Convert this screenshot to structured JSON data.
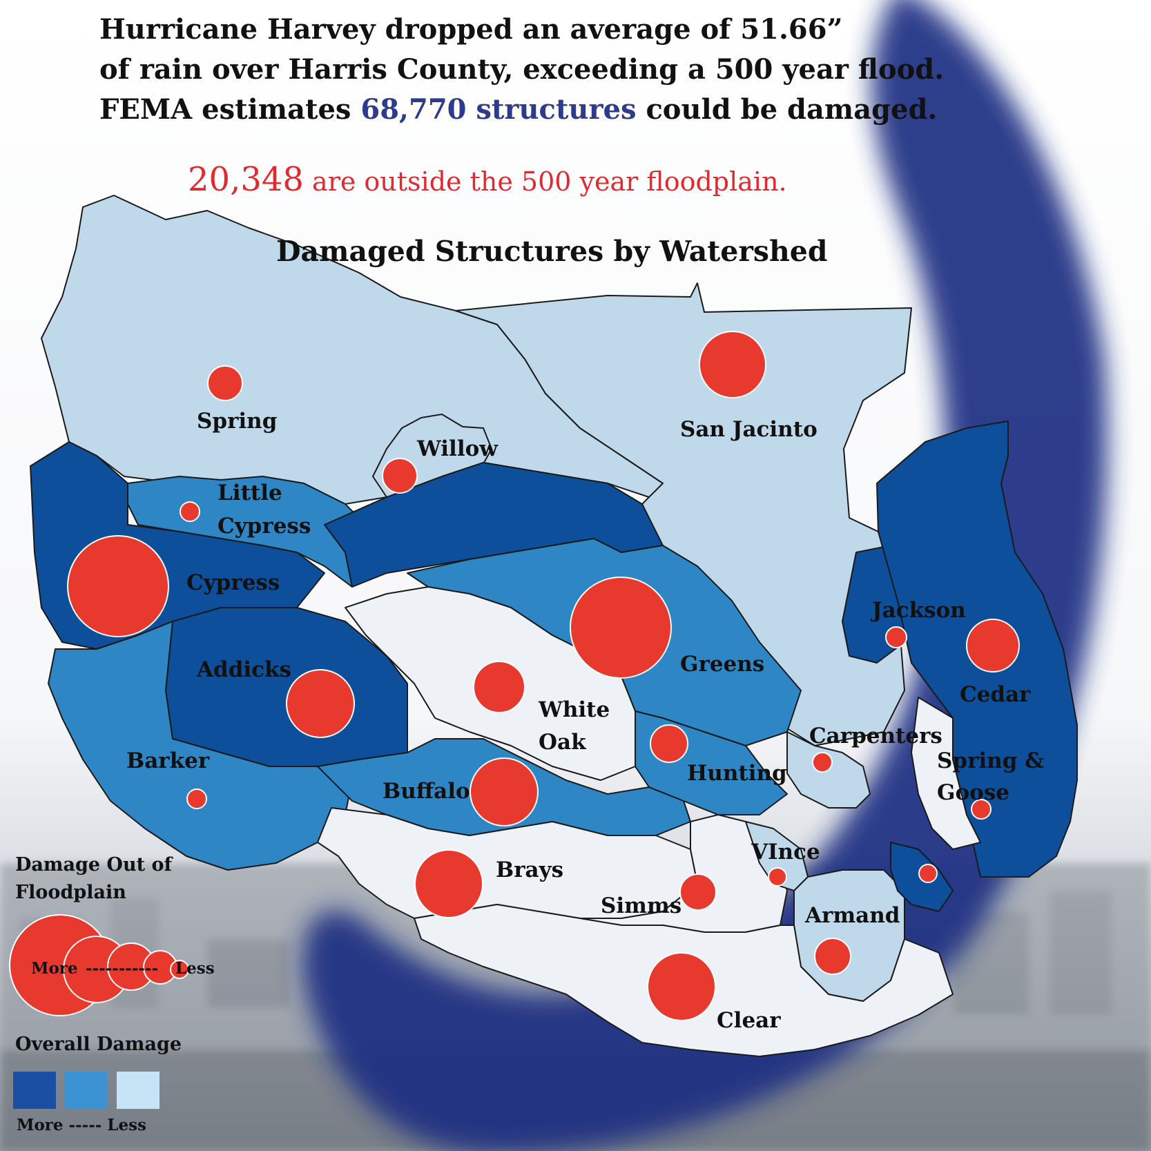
{
  "headline": {
    "line1": "Hurricane Harvey dropped an average of 51.66”",
    "line2": "of rain over Harris County, exceeding a 500 year flood.",
    "line3_pre": "FEMA estimates ",
    "line3_highlight": "68,770 structures",
    "line3_post": " could be damaged."
  },
  "subhead": {
    "number": "20,348",
    "text": " are outside the 500 year floodplain."
  },
  "map": {
    "title": "Damaged Structures by Watershed",
    "watersheds": [
      {
        "label": "Spring",
        "damage_level": "less"
      },
      {
        "label": "San Jacinto",
        "damage_level": "less"
      },
      {
        "label": "Willow",
        "damage_level": "less"
      },
      {
        "label": "Little Cypress",
        "damage_level": "medium"
      },
      {
        "label": "Cypress",
        "damage_level": "more"
      },
      {
        "label": "Addicks",
        "damage_level": "more"
      },
      {
        "label": "Greens",
        "damage_level": "medium"
      },
      {
        "label": "White Oak",
        "damage_level": "least"
      },
      {
        "label": "Jackson",
        "damage_level": "more"
      },
      {
        "label": "Cedar",
        "damage_level": "more"
      },
      {
        "label": "Barker",
        "damage_level": "medium"
      },
      {
        "label": "Buffalo",
        "damage_level": "medium"
      },
      {
        "label": "Carpenters",
        "damage_level": "less"
      },
      {
        "label": "Hunting",
        "damage_level": "medium"
      },
      {
        "label": "Spring & Goose",
        "damage_level": "least"
      },
      {
        "label": "Brays",
        "damage_level": "least"
      },
      {
        "label": "Simms",
        "damage_level": "least"
      },
      {
        "label": "VInce",
        "damage_level": "less"
      },
      {
        "label": "Armand",
        "damage_level": "less"
      },
      {
        "label": "Clear",
        "damage_level": "least"
      }
    ]
  },
  "legend": {
    "bubble_title_line1": "Damage Out of",
    "bubble_title_line2": "Floodplain",
    "bubble_more": "More",
    "bubble_less": "Less",
    "color_title": "Overall Damage",
    "color_scale_label": "More ----- Less",
    "swatch_colors": [
      "#1a4fa3",
      "#3b93d3",
      "#c5e4f6"
    ]
  },
  "colors": {
    "more": "#0d4f9b",
    "medium": "#2f86c4",
    "less": "#c0d9ea",
    "least": "#eef2f7",
    "bubble": "#e8392f",
    "headline_accent": "#2e3a8c",
    "subhead_accent": "#e12a2f"
  }
}
